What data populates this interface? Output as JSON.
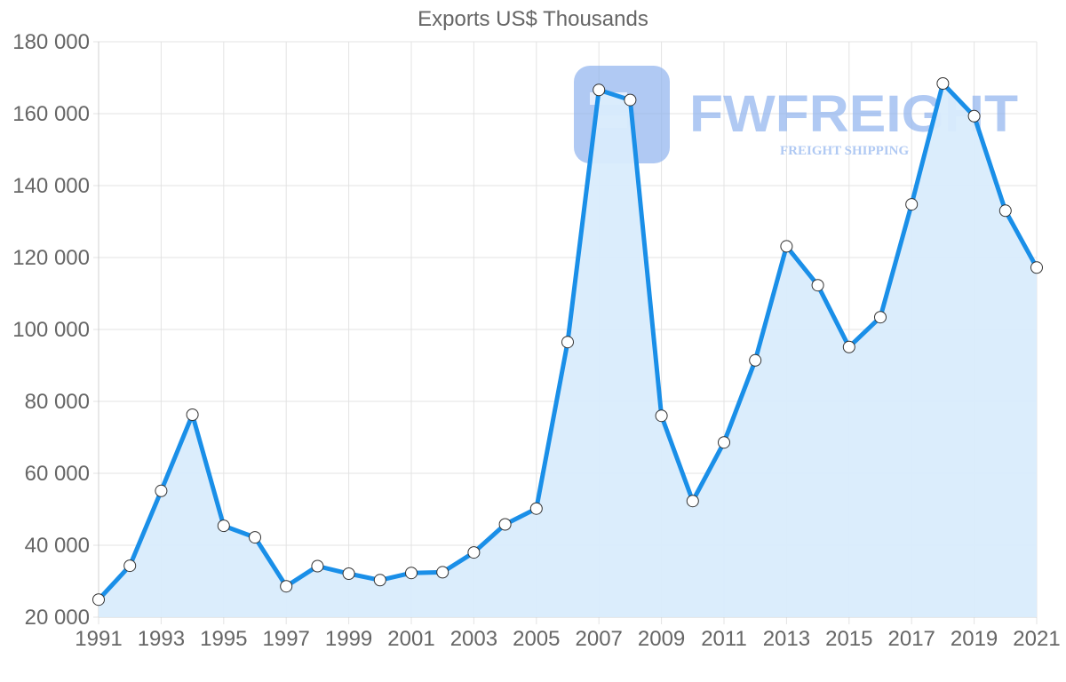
{
  "chart_data": {
    "type": "area",
    "title": "Exports US$ Thousands",
    "xlabel": "",
    "ylabel": "",
    "x": [
      1991,
      1992,
      1993,
      1994,
      1995,
      1996,
      1997,
      1998,
      1999,
      2000,
      2001,
      2002,
      2003,
      2004,
      2005,
      2006,
      2007,
      2008,
      2009,
      2010,
      2011,
      2012,
      2013,
      2014,
      2015,
      2016,
      2017,
      2018,
      2019,
      2020,
      2021
    ],
    "series": [
      {
        "name": "Exports US$ Thousands",
        "values": [
          24900,
          34300,
          55100,
          76300,
          45400,
          42200,
          28600,
          34200,
          32100,
          30300,
          32300,
          32500,
          38000,
          45800,
          50200,
          96500,
          166600,
          163800,
          76000,
          52300,
          68600,
          91400,
          123100,
          112300,
          95100,
          103400,
          134800,
          168400,
          159300,
          133000,
          117200
        ]
      }
    ],
    "ylim": [
      20000,
      180000
    ],
    "yticks": [
      20000,
      40000,
      60000,
      80000,
      100000,
      120000,
      140000,
      160000,
      180000
    ],
    "ytick_labels": [
      "20 000",
      "40 000",
      "60 000",
      "80 000",
      "100 000",
      "120 000",
      "140 000",
      "160 000",
      "180 000"
    ],
    "xtick_labels": [
      "1991",
      "1993",
      "1995",
      "1997",
      "1999",
      "2001",
      "2003",
      "2005",
      "2007",
      "2009",
      "2011",
      "2013",
      "2015",
      "2017",
      "2019",
      "2021"
    ],
    "grid": true,
    "legend": "none",
    "colors": {
      "line": "#1a8fe8",
      "fill": "#d9ecfc",
      "point_fill": "#ffffff",
      "point_stroke": "#333333"
    }
  },
  "watermark": {
    "brand": "FWFREIGHT",
    "tagline": "FREIGHT SHIPPING",
    "color": "#8fb3ee"
  }
}
